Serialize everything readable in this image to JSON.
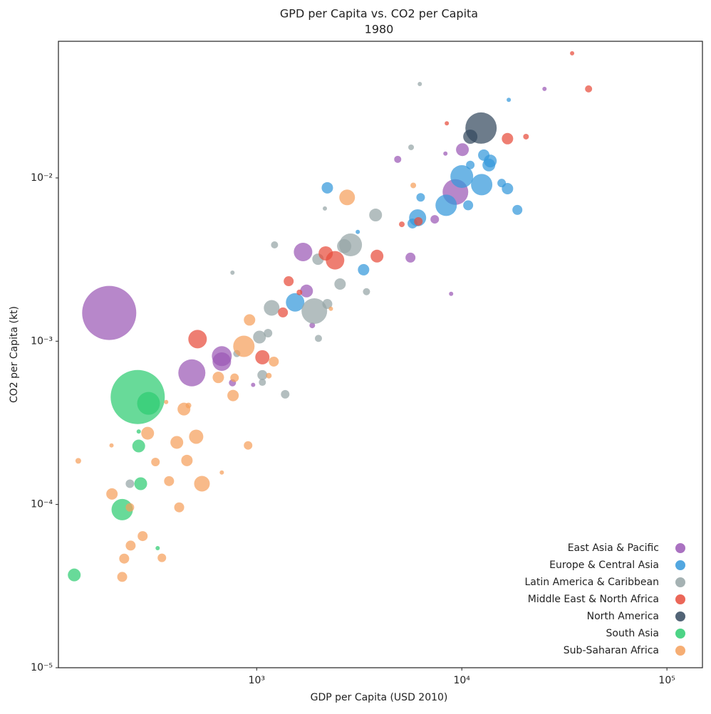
{
  "chart_data": {
    "type": "scatter",
    "title": "GPD per Capita vs. CO2 per Capita",
    "subtitle": "1980",
    "x_label": "GDP per Capita (USD 2010)",
    "y_label": "CO2 per Capita (kt)",
    "xscale": "log",
    "yscale": "log",
    "xlim": [
      108,
      149000
    ],
    "ylim": [
      1e-05,
      0.0687
    ],
    "xticks": [
      {
        "value": 1000,
        "label": "10³"
      },
      {
        "value": 10000,
        "label": "10⁴"
      },
      {
        "value": 100000,
        "label": "10⁵"
      }
    ],
    "yticks": [
      {
        "value": 1e-05,
        "label": "10⁻⁵"
      },
      {
        "value": 0.0001,
        "label": "10⁻⁴"
      },
      {
        "value": 0.001,
        "label": "10⁻³"
      },
      {
        "value": 0.01,
        "label": "10⁻²"
      }
    ],
    "grid": false,
    "legend": "lower right",
    "series": [
      {
        "name": "East Asia & Pacific",
        "color": "#9b59b6",
        "x": [
          191,
          483,
          676,
          676,
          1683,
          1750,
          9310,
          10070,
          5620,
          7380,
          4870,
          8870,
          25300,
          762,
          1866,
          961,
          8320
        ],
        "values": [
          0.00149,
          0.00064,
          0.00081,
          0.00075,
          0.00352,
          0.00203,
          0.0082,
          0.0149,
          0.00325,
          0.00558,
          0.013,
          0.00195,
          0.0351,
          0.000556,
          0.00125,
          0.00054,
          0.0141
        ],
        "sizes": [
          1444,
          361,
          196,
          169,
          169,
          81,
          324,
          81,
          49,
          36,
          25,
          9,
          9,
          25,
          16,
          9,
          9
        ]
      },
      {
        "name": "Europe & Central Asia",
        "color": "#3498db",
        "x": [
          10000,
          12500,
          8390,
          6090,
          1540,
          2210,
          3320,
          12800,
          13550,
          11000,
          16700,
          18660,
          10740,
          6300,
          15640,
          16940,
          3110,
          13770,
          5750
        ],
        "values": [
          0.0102,
          0.0091,
          0.0068,
          0.0057,
          0.00173,
          0.0087,
          0.00274,
          0.0138,
          0.012,
          0.012,
          0.0086,
          0.00637,
          0.0068,
          0.0076,
          0.0093,
          0.0301,
          0.00467,
          0.0127,
          0.00526
        ],
        "sizes": [
          256,
          225,
          225,
          144,
          169,
          64,
          64,
          64,
          81,
          36,
          64,
          49,
          49,
          36,
          36,
          9,
          9,
          81,
          49
        ]
      },
      {
        "name": "Latin America & Caribbean",
        "color": "#95a5a6",
        "x": [
          1910,
          2870,
          2670,
          1183,
          3800,
          1032,
          2550,
          1136,
          1066,
          1377,
          2210,
          1990,
          1222,
          2000,
          3430,
          241,
          800,
          762,
          5660,
          6240,
          2150,
          1066
        ],
        "values": [
          0.00153,
          0.00389,
          0.00382,
          0.0016,
          0.00593,
          0.00106,
          0.00224,
          0.00112,
          0.00062,
          0.000473,
          0.00169,
          0.00318,
          0.00389,
          0.00104,
          0.00201,
          0.000134,
          0.00084,
          0.00263,
          0.0154,
          0.0376,
          0.0065,
          0.00056
        ],
        "sizes": [
          324,
          256,
          100,
          121,
          81,
          81,
          64,
          36,
          49,
          36,
          49,
          64,
          25,
          25,
          25,
          36,
          25,
          9,
          16,
          9,
          9,
          25
        ]
      },
      {
        "name": "Middle East & North Africa",
        "color": "#e74c3c",
        "x": [
          515,
          2410,
          2170,
          3860,
          1066,
          16700,
          1432,
          1343,
          6140,
          41500,
          20560,
          34500,
          8450,
          5100,
          1616
        ],
        "values": [
          0.00103,
          0.00313,
          0.00345,
          0.00332,
          0.000797,
          0.0174,
          0.00233,
          0.0015,
          0.00542,
          0.0351,
          0.0179,
          0.058,
          0.0216,
          0.0052,
          0.00199
        ],
        "sizes": [
          169,
          169,
          100,
          81,
          100,
          64,
          49,
          49,
          36,
          25,
          16,
          9,
          9,
          16,
          16
        ]
      },
      {
        "name": "North America",
        "color": "#34495e",
        "x": [
          12410,
          11000
        ],
        "values": [
          0.0202,
          0.0179
        ],
        "sizes": [
          484,
          100
        ]
      },
      {
        "name": "South Asia",
        "color": "#2ecc71",
        "x": [
          263,
          297,
          221,
          266,
          272,
          129,
          329,
          266
        ],
        "values": [
          0.000455,
          0.000416,
          9.3e-05,
          0.000228,
          0.000134,
          3.7e-05,
          5.4e-05,
          0.00028
        ],
        "sizes": [
          1444,
          256,
          225,
          81,
          81,
          81,
          9,
          9
        ]
      },
      {
        "name": "Sub-Saharan Africa",
        "color": "#f5a05c",
        "x": [
          866,
          2760,
          541,
          507,
          442,
          294,
          408,
          457,
          767,
          650,
          923,
          1212,
          197,
          419,
          374,
          321,
          278,
          243,
          226,
          221,
          345,
          241,
          908,
          780,
          135,
          196,
          676,
          5800,
          2300,
          1146,
          465,
          362
        ],
        "values": [
          0.00093,
          0.0076,
          0.000134,
          0.00026,
          0.000384,
          0.000273,
          0.00024,
          0.000186,
          0.000465,
          0.0006,
          0.00135,
          0.00075,
          0.000116,
          9.6e-05,
          0.000139,
          0.000182,
          6.4e-05,
          5.6e-05,
          4.66e-05,
          3.6e-05,
          4.71e-05,
          9.6e-05,
          0.00023,
          0.000597,
          0.000185,
          0.00023,
          0.000157,
          0.009,
          0.00158,
          0.000615,
          0.000404,
          0.000424
        ],
        "sizes": [
          225,
          121,
          121,
          100,
          81,
          81,
          81,
          64,
          64,
          64,
          64,
          49,
          64,
          49,
          49,
          36,
          49,
          49,
          49,
          49,
          36,
          36,
          36,
          36,
          16,
          9,
          9,
          16,
          9,
          16,
          16,
          9
        ]
      }
    ]
  }
}
